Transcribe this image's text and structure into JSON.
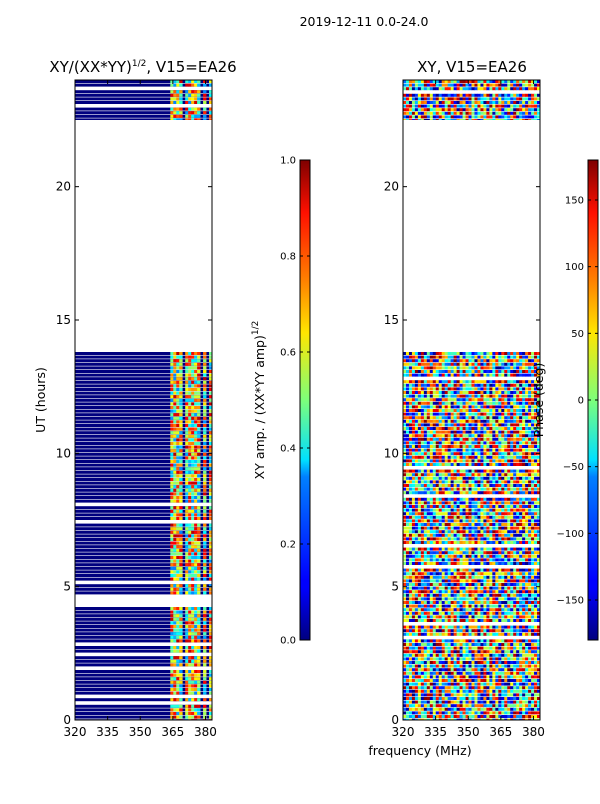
{
  "figure": {
    "suptitle": "2019-12-11 0.0-24.0",
    "xlabel": "frequency (MHz)"
  },
  "chart_data": [
    {
      "type": "heatmap",
      "title_main": "XY/(XX*YY)",
      "title_sup": "1/2",
      "title_rest": ", V15=EA26",
      "xlim": [
        320,
        383
      ],
      "ylim": [
        0,
        24
      ],
      "xticks": [
        {
          "v": 320,
          "l": "320"
        },
        {
          "v": 335,
          "l": "335"
        },
        {
          "v": 350,
          "l": "350"
        },
        {
          "v": 365,
          "l": "365"
        },
        {
          "v": 380,
          "l": "380"
        }
      ],
      "yticks": [
        {
          "v": 0,
          "l": "0"
        },
        {
          "v": 5,
          "l": "5"
        },
        {
          "v": 10,
          "l": "10"
        },
        {
          "v": 15,
          "l": "15"
        },
        {
          "v": 20,
          "l": "20"
        }
      ],
      "ylabel": "UT (hours)",
      "data_ranges_hours": [
        [
          0.0,
          13.8
        ],
        [
          22.5,
          24.0
        ]
      ],
      "colorbar": {
        "label_main": "XY amp. / (XX*YY amp)",
        "label_sup": "1/2",
        "range": [
          0.0,
          1.0
        ],
        "ticks": [
          {
            "v": 0.0,
            "l": "0.0"
          },
          {
            "v": 0.2,
            "l": "0.2"
          },
          {
            "v": 0.4,
            "l": "0.4"
          },
          {
            "v": 0.6,
            "l": "0.6"
          },
          {
            "v": 0.8,
            "l": "0.8"
          },
          {
            "v": 1.0,
            "l": "1.0"
          }
        ]
      }
    },
    {
      "type": "heatmap",
      "title_main": "XY, V15=EA26",
      "xlim": [
        320,
        383
      ],
      "ylim": [
        0,
        24
      ],
      "xticks": [
        {
          "v": 320,
          "l": "320"
        },
        {
          "v": 335,
          "l": "335"
        },
        {
          "v": 350,
          "l": "350"
        },
        {
          "v": 365,
          "l": "365"
        },
        {
          "v": 380,
          "l": "380"
        }
      ],
      "yticks": [
        {
          "v": 0,
          "l": "0"
        },
        {
          "v": 5,
          "l": "5"
        },
        {
          "v": 10,
          "l": "10"
        },
        {
          "v": 15,
          "l": "15"
        },
        {
          "v": 20,
          "l": "20"
        }
      ],
      "data_ranges_hours": [
        [
          0.0,
          13.8
        ],
        [
          22.5,
          24.0
        ]
      ],
      "colorbar": {
        "label": "Phase (deg)",
        "range": [
          -180,
          180
        ],
        "ticks": [
          {
            "v": -150,
            "l": "−150"
          },
          {
            "v": -100,
            "l": "−100"
          },
          {
            "v": -50,
            "l": "−50"
          },
          {
            "v": 0,
            "l": "0"
          },
          {
            "v": 50,
            "l": "50"
          },
          {
            "v": 100,
            "l": "100"
          },
          {
            "v": 150,
            "l": "150"
          }
        ]
      }
    }
  ]
}
